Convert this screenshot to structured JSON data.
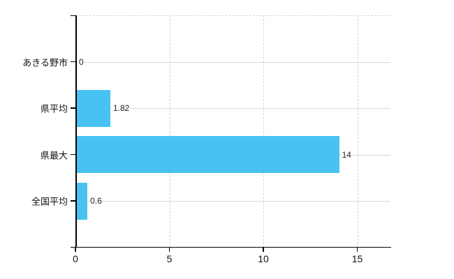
{
  "chart_data": {
    "type": "bar",
    "orientation": "horizontal",
    "title": "",
    "categories": [
      "あきる野市",
      "県平均",
      "県最大",
      "全国平均"
    ],
    "values": [
      0,
      1.82,
      14,
      0.6
    ],
    "value_labels": [
      "0",
      "1.82",
      "14",
      "0.6"
    ],
    "x_ticks": [
      0,
      5,
      10,
      15
    ],
    "x_tick_labels": [
      "0",
      "5",
      "10",
      "15"
    ],
    "xlim": [
      0,
      16.75
    ],
    "xlabel": "",
    "ylabel": "",
    "legend": false,
    "grid": true,
    "bar_color": "#48c2f2",
    "axis_color": "#000000",
    "solid_grid_color": "#d6dad6",
    "dashed_grid_color": "#d4d2d6",
    "label_color": "#111111"
  }
}
